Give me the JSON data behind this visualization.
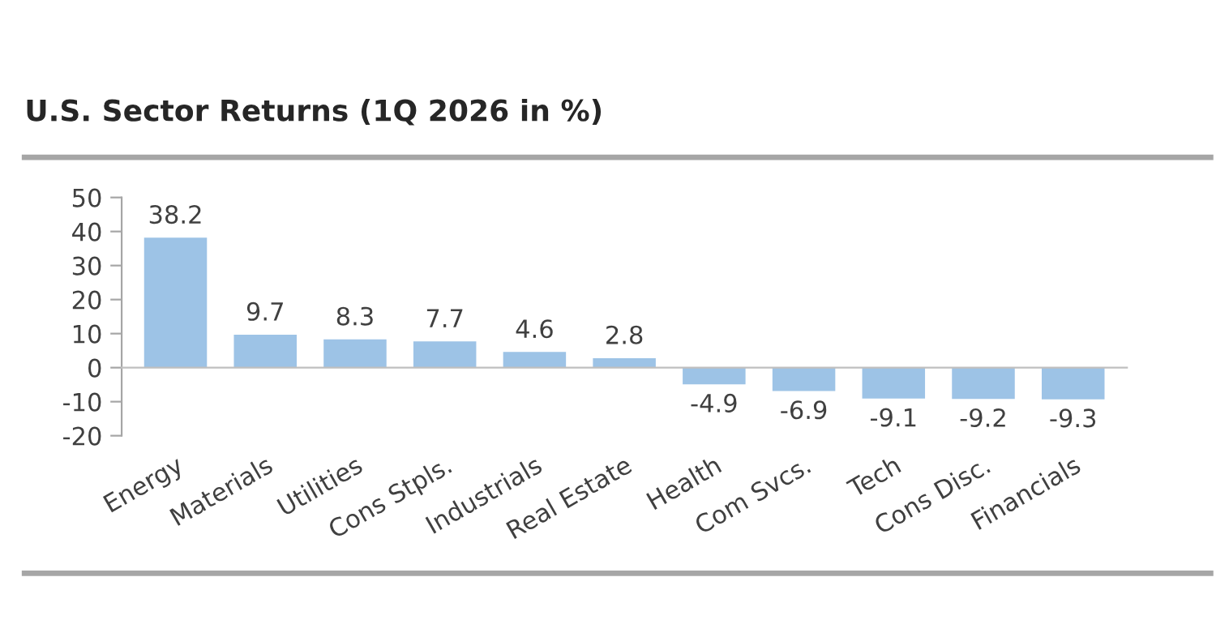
{
  "chart_data": {
    "type": "bar",
    "title": "U.S. Sector Returns (1Q 2026 in %)",
    "categories": [
      "Energy",
      "Materials",
      "Utilities",
      "Cons Stpls.",
      "Industrials",
      "Real Estate",
      "Health",
      "Com Svcs.",
      "Tech",
      "Cons Disc.",
      "Financials"
    ],
    "values": [
      38.2,
      9.7,
      8.3,
      7.7,
      4.6,
      2.8,
      -4.9,
      -6.9,
      -9.1,
      -9.2,
      -9.3
    ],
    "color": "#9dc3e6",
    "ylim": [
      -20,
      50
    ],
    "yticks": [
      -20,
      -10,
      0,
      10,
      20,
      30,
      40,
      50
    ],
    "data_labels": true
  }
}
